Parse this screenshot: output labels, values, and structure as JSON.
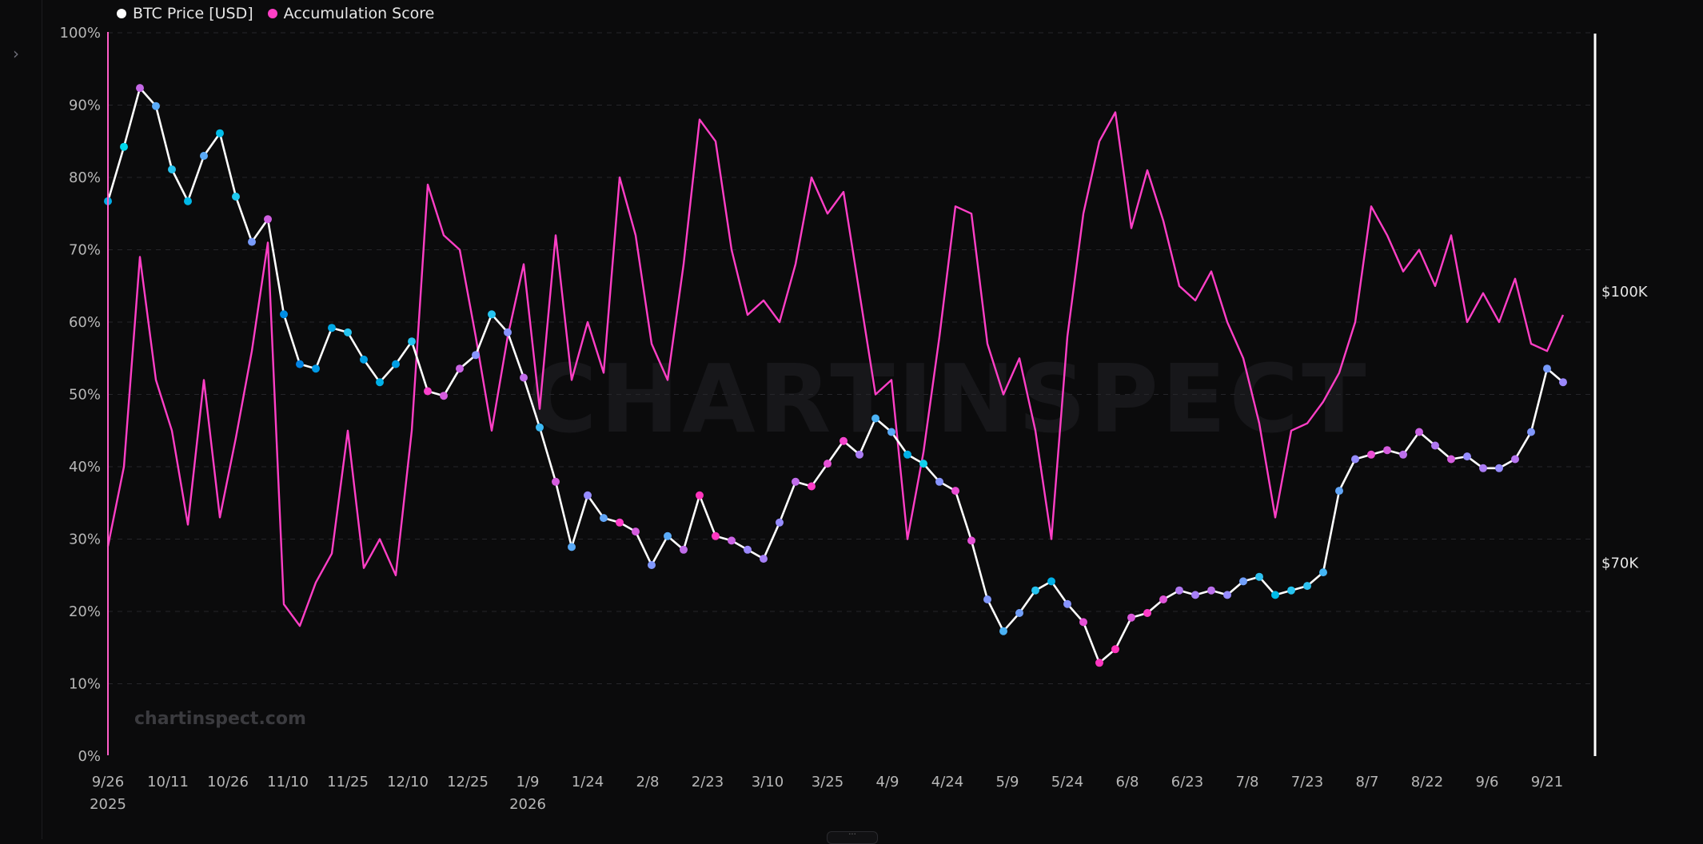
{
  "legend": [
    {
      "label": "BTC Price [USD]",
      "color": "#ffffff"
    },
    {
      "label": "Accumulation Score",
      "color": "#ff3fc6"
    }
  ],
  "watermark": {
    "small": "chartinspect.com",
    "big": "CHARTINSPECT"
  },
  "chart_data": {
    "type": "line",
    "x_ticks": [
      "9/26",
      "10/11",
      "10/26",
      "11/10",
      "11/25",
      "12/10",
      "12/25",
      "1/9",
      "1/24",
      "2/8",
      "2/23",
      "3/10",
      "3/25",
      "4/9",
      "4/24",
      "5/9",
      "5/24",
      "6/8",
      "6/23",
      "7/8",
      "7/23",
      "8/7",
      "8/22",
      "9/6",
      "9/21"
    ],
    "x_year_labels": [
      "2025",
      "2026"
    ],
    "y_left": {
      "ticks": [
        "0%",
        "10%",
        "20%",
        "30%",
        "40%",
        "50%",
        "60%",
        "70%",
        "80%",
        "90%",
        "100%"
      ],
      "range": [
        0,
        100
      ]
    },
    "y_right": {
      "ticks": [
        {
          "label": "$70K",
          "value": 70000
        },
        {
          "label": "$100K",
          "value": 100000
        }
      ],
      "range": [
        48700,
        128600
      ]
    },
    "grid": true,
    "legend_position": "top-left",
    "series": [
      {
        "name": "BTC Price [USD]",
        "color": "#ffffff",
        "markers_colored_by": "Accumulation Score",
        "x_index": [
          0,
          4,
          8,
          12,
          16,
          20,
          24,
          28,
          32,
          36,
          40,
          44,
          48,
          52,
          56,
          60,
          64,
          68,
          72,
          76,
          80,
          84,
          88,
          92,
          96,
          100,
          104,
          108,
          112,
          116,
          120,
          124,
          128,
          132,
          136,
          140,
          144,
          148,
          152,
          156,
          160,
          164,
          168,
          172,
          176,
          180,
          184,
          188,
          192,
          196,
          200,
          204,
          208,
          212,
          216,
          220,
          224,
          228,
          232,
          236,
          240,
          244,
          248,
          252,
          256,
          260,
          264,
          268,
          272,
          276,
          280,
          284,
          288,
          292,
          296,
          300,
          304,
          308,
          312,
          316,
          320,
          324,
          328,
          332,
          336,
          340,
          344,
          348,
          352,
          356,
          360,
          364
        ],
        "values": [
          110000,
          116000,
          122500,
          120500,
          113500,
          110000,
          115000,
          117500,
          110500,
          105500,
          108000,
          97500,
          92000,
          91500,
          96000,
          95500,
          92500,
          90000,
          92000,
          94500,
          89000,
          88500,
          91500,
          93000,
          97500,
          95500,
          90500,
          85000,
          79000,
          71800,
          77500,
          75000,
          74500,
          73500,
          69800,
          73000,
          71500,
          77500,
          73000,
          72500,
          71500,
          70500,
          74500,
          79000,
          78500,
          81000,
          83500,
          82000,
          86000,
          84500,
          82000,
          81000,
          79000,
          78000,
          72500,
          66000,
          62500,
          64500,
          67000,
          68000,
          65500,
          63500,
          59000,
          60500,
          64000,
          64500,
          66000,
          67000,
          66500,
          67000,
          66500,
          68000,
          68500,
          66500,
          67000,
          67500,
          69000,
          78000,
          81500,
          82000,
          82500,
          82000,
          84500,
          83000,
          81500,
          81800,
          80500,
          80500,
          81500,
          84500,
          91500,
          90000
        ]
      },
      {
        "name": "Accumulation Score",
        "color": "#ff3fc6",
        "x_index": [
          0,
          4,
          8,
          12,
          16,
          20,
          24,
          28,
          32,
          36,
          40,
          44,
          48,
          52,
          56,
          60,
          64,
          68,
          72,
          76,
          80,
          84,
          88,
          92,
          96,
          100,
          104,
          108,
          112,
          116,
          120,
          124,
          128,
          132,
          136,
          140,
          144,
          148,
          152,
          156,
          160,
          164,
          168,
          172,
          176,
          180,
          184,
          188,
          192,
          196,
          200,
          204,
          208,
          212,
          216,
          220,
          224,
          228,
          232,
          236,
          240,
          244,
          248,
          252,
          256,
          260,
          264,
          268,
          272,
          276,
          280,
          284,
          288,
          292,
          296,
          300,
          304,
          308,
          312,
          316,
          320,
          324,
          328,
          332,
          336,
          340,
          344,
          348,
          352,
          356,
          360,
          364
        ],
        "values": [
          29,
          40,
          69,
          52,
          45,
          32,
          52,
          33,
          44,
          56,
          71,
          21,
          18,
          24,
          28,
          45,
          26,
          30,
          25,
          45,
          79,
          72,
          70,
          58,
          45,
          58,
          68,
          48,
          72,
          52,
          60,
          53,
          80,
          72,
          57,
          52,
          68,
          88,
          85,
          70,
          61,
          63,
          60,
          68,
          80,
          75,
          78,
          64,
          50,
          52,
          30,
          42,
          58,
          76,
          75,
          57,
          50,
          55,
          45,
          30,
          58,
          75,
          85,
          89,
          73,
          81,
          74,
          65,
          63,
          67,
          60,
          55,
          46,
          33,
          45,
          46,
          49,
          53,
          60,
          76,
          72,
          67,
          70,
          65,
          72,
          60,
          64,
          60,
          66,
          57,
          56,
          61
        ]
      }
    ]
  }
}
